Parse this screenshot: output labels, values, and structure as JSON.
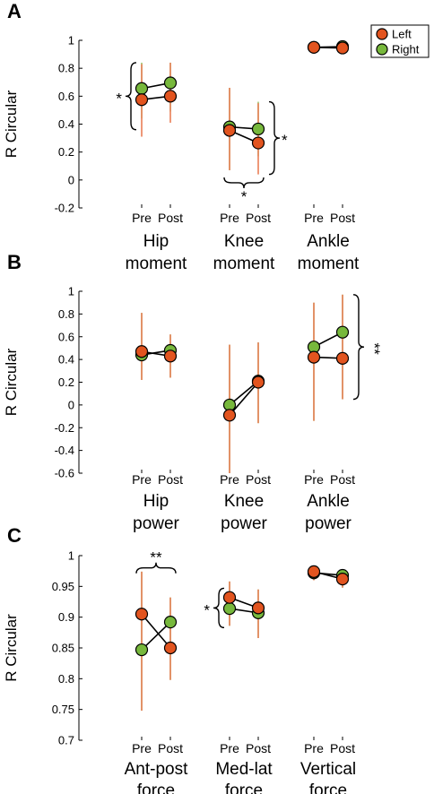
{
  "colors": {
    "left": "#e2541f",
    "right": "#77b83c",
    "line": "#000000"
  },
  "legend": {
    "left": "Left",
    "right": "Right"
  },
  "time_labels": [
    "Pre",
    "Post"
  ],
  "chart_data": [
    {
      "type": "line",
      "panel": "A",
      "ylabel": "R Circular",
      "ylim": [
        -0.2,
        1
      ],
      "yticks": [
        "-0.2",
        "0",
        "0.2",
        "0.4",
        "0.6",
        "0.8",
        "1"
      ],
      "ytick_values": [
        -0.2,
        0,
        0.2,
        0.4,
        0.6,
        0.8,
        1
      ],
      "x": [
        "Pre",
        "Post"
      ],
      "groups": [
        {
          "label1": "Hip",
          "label2": "moment",
          "left": {
            "mean": [
              0.575,
              0.6
            ],
            "lo": [
              0.31,
              0.41
            ],
            "hi": [
              0.83,
              0.84
            ]
          },
          "right": {
            "mean": [
              0.655,
              0.695
            ],
            "lo": [
              0.44,
              0.49
            ],
            "hi": [
              0.84,
              0.84
            ]
          }
        },
        {
          "label1": "Knee",
          "label2": "moment",
          "left": {
            "mean": [
              0.355,
              0.265
            ],
            "lo": [
              0.07,
              0.04
            ],
            "hi": [
              0.66,
              0.55
            ]
          },
          "right": {
            "mean": [
              0.38,
              0.365
            ],
            "lo": [
              0.07,
              0.17
            ],
            "hi": [
              0.66,
              0.56
            ]
          }
        },
        {
          "label1": "Ankle",
          "label2": "moment",
          "left": {
            "mean": [
              0.95,
              0.945
            ],
            "lo": [
              0.93,
              0.92
            ],
            "hi": [
              0.97,
              0.99
            ]
          },
          "right": {
            "mean": [
              0.95,
              0.955
            ],
            "lo": [
              0.93,
              0.93
            ],
            "hi": [
              0.97,
              1.0
            ]
          }
        }
      ],
      "annotations": [
        {
          "text": "*",
          "kind": "left-brace",
          "group": 0,
          "range": [
            0.36,
            0.84
          ]
        },
        {
          "text": "*",
          "kind": "right-brace",
          "group": 1,
          "range": [
            0.04,
            0.56
          ]
        },
        {
          "text": "*",
          "kind": "bottom-brace",
          "group": 1,
          "at": -0.02
        }
      ]
    },
    {
      "type": "line",
      "panel": "B",
      "ylabel": "R Circular",
      "ylim": [
        -0.6,
        1
      ],
      "yticks": [
        "-0.6",
        "-0.4",
        "-0.2",
        "0",
        "0.2",
        "0.4",
        "0.6",
        "0.8",
        "1"
      ],
      "ytick_values": [
        -0.6,
        -0.4,
        -0.2,
        0,
        0.2,
        0.4,
        0.6,
        0.8,
        1
      ],
      "x": [
        "Pre",
        "Post"
      ],
      "groups": [
        {
          "label1": "Hip",
          "label2": "power",
          "left": {
            "mean": [
              0.47,
              0.43
            ],
            "lo": [
              0.22,
              0.24
            ],
            "hi": [
              0.81,
              0.62
            ]
          },
          "right": {
            "mean": [
              0.44,
              0.48
            ],
            "lo": [
              0.22,
              0.24
            ],
            "hi": [
              0.81,
              0.62
            ]
          }
        },
        {
          "label1": "Knee",
          "label2": "power",
          "left": {
            "mean": [
              -0.09,
              0.2
            ],
            "lo": [
              -0.6,
              -0.16
            ],
            "hi": [
              0.53,
              0.55
            ]
          },
          "right": {
            "mean": [
              0.0,
              0.21
            ],
            "lo": [
              -0.6,
              -0.16
            ],
            "hi": [
              0.53,
              0.55
            ]
          }
        },
        {
          "label1": "Ankle",
          "label2": "power",
          "left": {
            "mean": [
              0.42,
              0.41
            ],
            "lo": [
              -0.14,
              0.05
            ],
            "hi": [
              0.9,
              0.97
            ]
          },
          "right": {
            "mean": [
              0.51,
              0.64
            ],
            "lo": [
              -0.14,
              0.05
            ],
            "hi": [
              0.9,
              0.97
            ]
          }
        }
      ],
      "annotations": [
        {
          "text": "**",
          "kind": "right-brace",
          "group": 2,
          "range": [
            0.05,
            0.97
          ]
        }
      ]
    },
    {
      "type": "line",
      "panel": "C",
      "ylabel": "R Circular",
      "ylim": [
        0.7,
        1
      ],
      "yticks": [
        "0.7",
        "0.75",
        "0.8",
        "0.85",
        "0.9",
        "0.95",
        "1"
      ],
      "ytick_values": [
        0.7,
        0.75,
        0.8,
        0.85,
        0.9,
        0.95,
        1
      ],
      "x": [
        "Pre",
        "Post"
      ],
      "groups": [
        {
          "label1": "Ant-post",
          "label2": "force",
          "left": {
            "mean": [
              0.905,
              0.85
            ],
            "lo": [
              0.748,
              0.798
            ],
            "hi": [
              0.974,
              0.932
            ]
          },
          "right": {
            "mean": [
              0.847,
              0.892
            ],
            "lo": [
              0.748,
              0.798
            ],
            "hi": [
              0.974,
              0.932
            ]
          }
        },
        {
          "label1": "Med-lat",
          "label2": "force",
          "left": {
            "mean": [
              0.932,
              0.915
            ],
            "lo": [
              0.886,
              0.866
            ],
            "hi": [
              0.958,
              0.945
            ]
          },
          "right": {
            "mean": [
              0.914,
              0.907
            ],
            "lo": [
              0.886,
              0.866
            ],
            "hi": [
              0.958,
              0.945
            ]
          }
        },
        {
          "label1": "Vertical",
          "label2": "force",
          "left": {
            "mean": [
              0.974,
              0.962
            ],
            "lo": [
              0.96,
              0.948
            ],
            "hi": [
              0.978,
              0.978
            ]
          },
          "right": {
            "mean": [
              0.972,
              0.968
            ],
            "lo": [
              0.96,
              0.948
            ],
            "hi": [
              0.978,
              0.978
            ]
          }
        }
      ],
      "annotations": [
        {
          "text": "**",
          "kind": "top-brace",
          "group": 0,
          "at": 0.98
        },
        {
          "text": "*",
          "kind": "left-brace",
          "group": 1,
          "range": [
            0.883,
            0.947
          ]
        }
      ]
    }
  ]
}
